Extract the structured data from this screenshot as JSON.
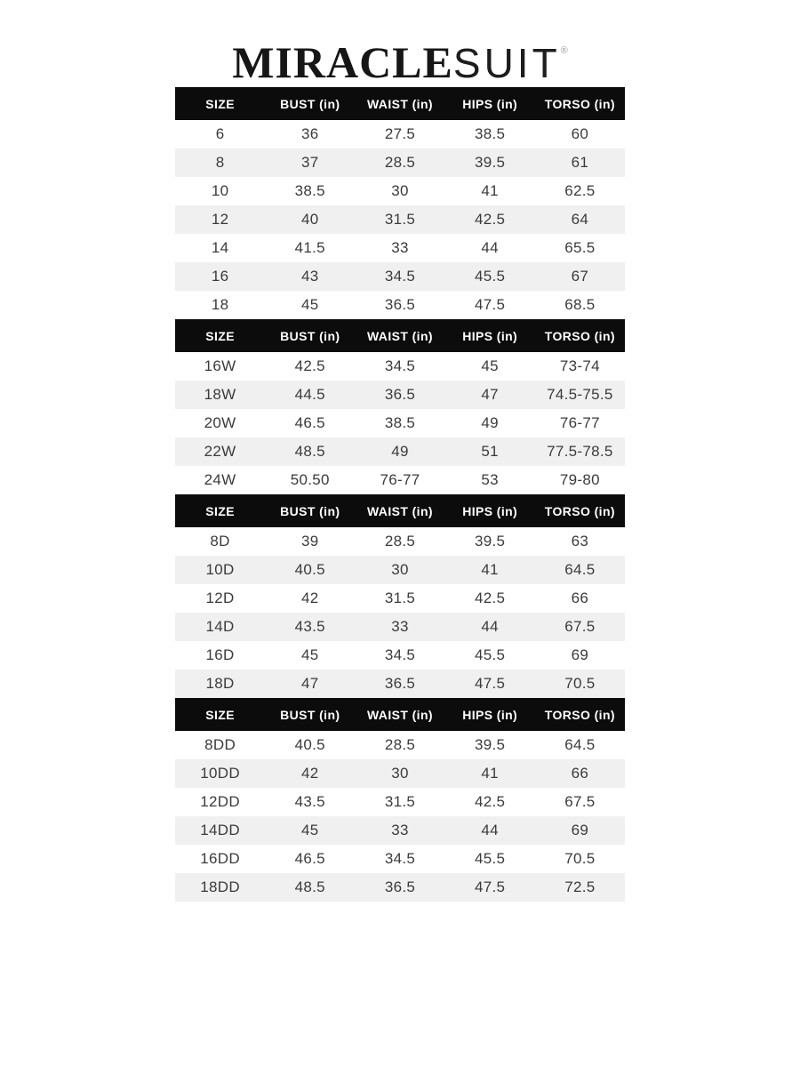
{
  "brand": {
    "logo_primary": "MIRACLE",
    "logo_secondary": "SUIT",
    "trademark": "®"
  },
  "colors": {
    "header_bg": "#0c0c0c",
    "header_text": "#ffffff",
    "row_alt_bg": "#f0f0f0",
    "body_text": "#3b3b3b",
    "page_bg": "#ffffff"
  },
  "columns": [
    "SIZE",
    "BUST (in)",
    "WAIST (in)",
    "HIPS (in)",
    "TORSO (in)"
  ],
  "tables": [
    {
      "name": "standard-sizes",
      "rows": [
        [
          "6",
          "36",
          "27.5",
          "38.5",
          "60"
        ],
        [
          "8",
          "37",
          "28.5",
          "39.5",
          "61"
        ],
        [
          "10",
          "38.5",
          "30",
          "41",
          "62.5"
        ],
        [
          "12",
          "40",
          "31.5",
          "42.5",
          "64"
        ],
        [
          "14",
          "41.5",
          "33",
          "44",
          "65.5"
        ],
        [
          "16",
          "43",
          "34.5",
          "45.5",
          "67"
        ],
        [
          "18",
          "45",
          "36.5",
          "47.5",
          "68.5"
        ]
      ]
    },
    {
      "name": "womens-plus-sizes",
      "rows": [
        [
          "16W",
          "42.5",
          "34.5",
          "45",
          "73-74"
        ],
        [
          "18W",
          "44.5",
          "36.5",
          "47",
          "74.5-75.5"
        ],
        [
          "20W",
          "46.5",
          "38.5",
          "49",
          "76-77"
        ],
        [
          "22W",
          "48.5",
          "49",
          "51",
          "77.5-78.5"
        ],
        [
          "24W",
          "50.50",
          "76-77",
          "53",
          "79-80"
        ]
      ]
    },
    {
      "name": "d-cup-sizes",
      "rows": [
        [
          "8D",
          "39",
          "28.5",
          "39.5",
          "63"
        ],
        [
          "10D",
          "40.5",
          "30",
          "41",
          "64.5"
        ],
        [
          "12D",
          "42",
          "31.5",
          "42.5",
          "66"
        ],
        [
          "14D",
          "43.5",
          "33",
          "44",
          "67.5"
        ],
        [
          "16D",
          "45",
          "34.5",
          "45.5",
          "69"
        ],
        [
          "18D",
          "47",
          "36.5",
          "47.5",
          "70.5"
        ]
      ]
    },
    {
      "name": "dd-cup-sizes",
      "rows": [
        [
          "8DD",
          "40.5",
          "28.5",
          "39.5",
          "64.5"
        ],
        [
          "10DD",
          "42",
          "30",
          "41",
          "66"
        ],
        [
          "12DD",
          "43.5",
          "31.5",
          "42.5",
          "67.5"
        ],
        [
          "14DD",
          "45",
          "33",
          "44",
          "69"
        ],
        [
          "16DD",
          "46.5",
          "34.5",
          "45.5",
          "70.5"
        ],
        [
          "18DD",
          "48.5",
          "36.5",
          "47.5",
          "72.5"
        ]
      ]
    }
  ]
}
